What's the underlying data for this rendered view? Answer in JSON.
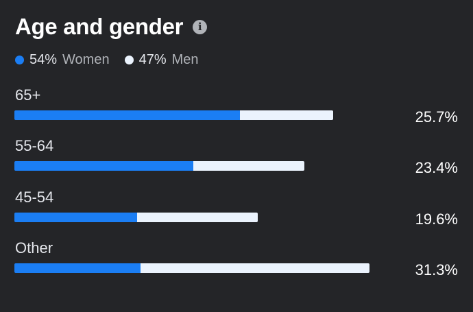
{
  "header": {
    "title": "Age and gender",
    "info_icon": "info-icon"
  },
  "legend": [
    {
      "pct": "54%",
      "name": "Women",
      "color": "#1b7ef4"
    },
    {
      "pct": "47%",
      "name": "Men",
      "color": "#ebf3fd"
    }
  ],
  "colors": {
    "women": "#1b7ef4",
    "men": "#ebf3fd"
  },
  "rows": [
    {
      "label": "65+",
      "value": "25.7%",
      "total_fraction": 0.826,
      "women_fraction": 0.707
    },
    {
      "label": "55-64",
      "value": "23.4%",
      "total_fraction": 0.752,
      "women_fraction": 0.617
    },
    {
      "label": "45-54",
      "value": "19.6%",
      "total_fraction": 0.63,
      "women_fraction": 0.504
    },
    {
      "label": "Other",
      "value": "31.3%",
      "total_fraction": 0.92,
      "women_fraction": 0.356
    }
  ]
}
